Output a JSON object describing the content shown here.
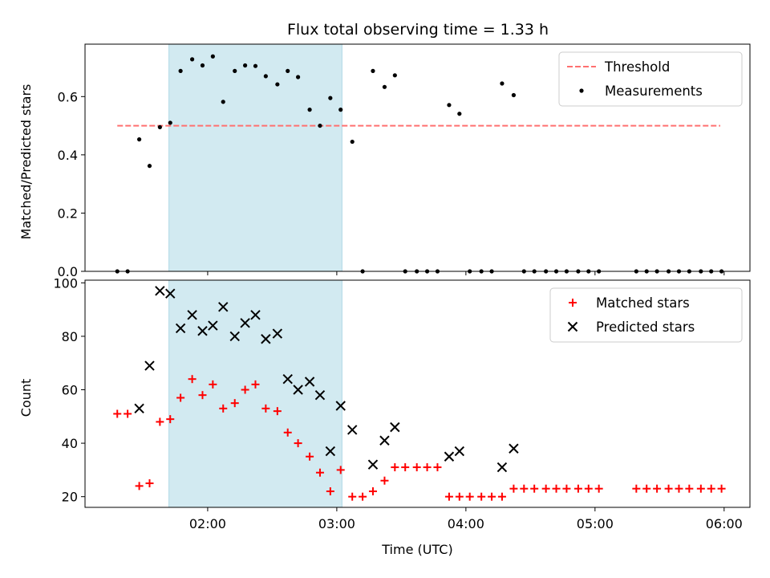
{
  "title": "Flux total observing time = 1.33 h",
  "colors": {
    "threshold": "#ff7070",
    "measurement": "#000000",
    "matched": "#ff0000",
    "predicted": "#000000",
    "shade": "#add8e6"
  },
  "chart_data": [
    {
      "type": "scatter",
      "panel": "top",
      "ylabel": "Matched/Predicted stars",
      "xlabel": "",
      "xlim": [
        1.05,
        6.2
      ],
      "ylim": [
        0,
        0.78
      ],
      "yticks": [
        0.0,
        0.2,
        0.4,
        0.6
      ],
      "ytick_labels": [
        "0.0",
        "0.2",
        "0.4",
        "0.6"
      ],
      "xticks": [
        2,
        3,
        4,
        5,
        6
      ],
      "shaded_span": [
        1.7,
        3.04
      ],
      "legend_position": "top-right",
      "threshold": {
        "name": "Threshold",
        "value": 0.5,
        "x_range": [
          1.3,
          5.97
        ],
        "style": "dashed"
      },
      "series": [
        {
          "name": "Measurements",
          "x": [
            1.3,
            1.38,
            1.47,
            1.55,
            1.63,
            1.71,
            1.79,
            1.88,
            1.96,
            2.04,
            2.12,
            2.21,
            2.29,
            2.37,
            2.45,
            2.54,
            2.62,
            2.7,
            2.79,
            2.87,
            2.95,
            3.03,
            3.12,
            3.2,
            3.28,
            3.37,
            3.45,
            3.53,
            3.62,
            3.7,
            3.78,
            3.87,
            3.95,
            4.03,
            4.12,
            4.2,
            4.28,
            4.37,
            4.45,
            4.53,
            4.62,
            4.7,
            4.78,
            4.87,
            4.95,
            5.03,
            5.32,
            5.4,
            5.48,
            5.57,
            5.65,
            5.73,
            5.82,
            5.9,
            5.98
          ],
          "y": [
            0.0,
            0.0,
            0.453,
            0.362,
            0.495,
            0.51,
            0.688,
            0.728,
            0.707,
            0.738,
            0.582,
            0.688,
            0.707,
            0.705,
            0.67,
            0.642,
            0.688,
            0.667,
            0.555,
            0.5,
            0.595,
            0.555,
            0.445,
            0.0,
            0.688,
            0.633,
            0.673,
            0.0,
            0.0,
            0.0,
            0.0,
            0.571,
            0.541,
            0.0,
            0.0,
            0.0,
            0.645,
            0.605,
            0.0,
            0.0,
            0.0,
            0.0,
            0.0,
            0.0,
            0.0,
            0.0,
            0.0,
            0.0,
            0.0,
            0.0,
            0.0,
            0.0,
            0.0,
            0.0,
            0.0
          ]
        }
      ]
    },
    {
      "type": "scatter",
      "panel": "bottom",
      "ylabel": "Count",
      "xlabel": "Time (UTC)",
      "xlim": [
        1.05,
        6.2
      ],
      "ylim": [
        16,
        101
      ],
      "yticks": [
        20,
        40,
        60,
        80,
        100
      ],
      "ytick_labels": [
        "20",
        "40",
        "60",
        "80",
        "100"
      ],
      "xticks": [
        2,
        3,
        4,
        5,
        6
      ],
      "xtick_labels": [
        "02:00",
        "03:00",
        "04:00",
        "05:00",
        "06:00"
      ],
      "shaded_span": [
        1.7,
        3.04
      ],
      "legend_position": "top-right",
      "series": [
        {
          "name": "Matched stars",
          "marker": "plus",
          "x": [
            1.3,
            1.38,
            1.47,
            1.55,
            1.63,
            1.71,
            1.79,
            1.88,
            1.96,
            2.04,
            2.12,
            2.21,
            2.29,
            2.37,
            2.45,
            2.54,
            2.62,
            2.7,
            2.79,
            2.87,
            2.95,
            3.03,
            3.12,
            3.2,
            3.28,
            3.37,
            3.45,
            3.53,
            3.62,
            3.7,
            3.78,
            3.87,
            3.95,
            4.03,
            4.12,
            4.2,
            4.28,
            4.37,
            4.45,
            4.53,
            4.62,
            4.7,
            4.78,
            4.87,
            4.95,
            5.03,
            5.32,
            5.4,
            5.48,
            5.57,
            5.65,
            5.73,
            5.82,
            5.9,
            5.98
          ],
          "y": [
            51,
            51,
            24,
            25,
            48,
            49,
            57,
            64,
            58,
            62,
            53,
            55,
            60,
            62,
            53,
            52,
            44,
            40,
            35,
            29,
            22,
            30,
            20,
            20,
            22,
            26,
            31,
            31,
            31,
            31,
            31,
            20,
            20,
            20,
            20,
            20,
            20,
            23,
            23,
            23,
            23,
            23,
            23,
            23,
            23,
            23,
            23,
            23,
            23,
            23,
            23,
            23,
            23,
            23,
            23
          ]
        },
        {
          "name": "Predicted stars",
          "marker": "x",
          "x": [
            1.47,
            1.55,
            1.63,
            1.71,
            1.79,
            1.88,
            1.96,
            2.04,
            2.12,
            2.21,
            2.29,
            2.37,
            2.45,
            2.54,
            2.62,
            2.7,
            2.79,
            2.87,
            2.95,
            3.03,
            3.12,
            3.28,
            3.37,
            3.45,
            3.87,
            3.95,
            4.28,
            4.37
          ],
          "y": [
            53,
            69,
            97,
            96,
            83,
            88,
            82,
            84,
            91,
            80,
            85,
            88,
            79,
            81,
            64,
            60,
            63,
            58,
            37,
            54,
            45,
            32,
            41,
            46,
            35,
            37,
            31,
            38
          ]
        }
      ]
    }
  ]
}
